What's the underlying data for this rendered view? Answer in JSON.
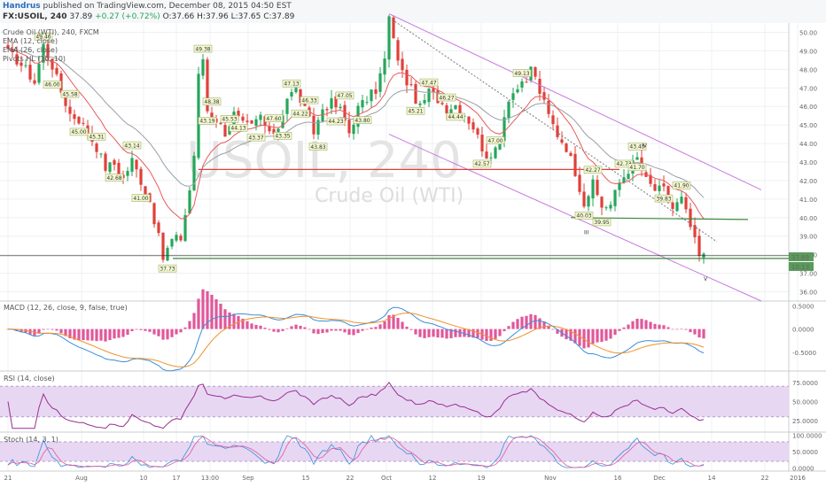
{
  "header": {
    "author": "Handrus",
    "published": "published on TradingView.com, December 08, 2015 04:50 EST",
    "symbol": "FX:USOIL, 240",
    "price": "37.89",
    "change": "+0.27 (+0.72%)",
    "ohlc": "O:37.66 H:37.96 L:37.65 C:37.89"
  },
  "legend": {
    "title": "Crude Oil (WTI), 240, FXCM",
    "ema12": "EMA (12, close)",
    "ema26": "EMA (26, close)",
    "pivots": "Pivots HL (10, 10)"
  },
  "watermark": {
    "ticker": "USOIL, 240",
    "name": "Crude Oil (WTI)"
  },
  "panels": {
    "macd": "MACD (12, 26, close, 9, false, true)",
    "rsi": "RSI (14, close)",
    "stoch": "Stoch (14, 3, 1)"
  },
  "colors": {
    "candle_up": "#26a65b",
    "candle_down": "#e0403a",
    "ema_fast": "#e85a5a",
    "ema_slow": "#9aa0a6",
    "channel": "#c879e0",
    "support": "#3c8a3c",
    "resistance": "#e0403a",
    "macd_line": "#3a8fd8",
    "signal_line": "#f0922a",
    "histogram": "#e0589a",
    "rsi_line": "#9b2f8f",
    "band_fill": "#e7d7f3"
  },
  "badges": {
    "last_price": "37.89",
    "countdown": "10:13"
  },
  "wave_labels": [
    "III",
    "IV",
    "V"
  ],
  "chart_data": [
    {
      "type": "candlestick",
      "title": "Crude Oil (WTI), 240, FXCM",
      "ylim": [
        35.5,
        50.5
      ],
      "y_ticks": [
        "50.00",
        "49.00",
        "48.00",
        "47.00",
        "46.00",
        "45.00",
        "44.00",
        "43.00",
        "42.00",
        "41.00",
        "40.00",
        "39.00",
        "38.00",
        "37.00",
        "36.00"
      ],
      "x_ticks": [
        "21",
        "Aug",
        "10",
        "17",
        "13:00",
        "Sep",
        "15",
        "22",
        "Oct",
        "12",
        "19",
        "Nov",
        "16",
        "Dec",
        "14",
        "22",
        "2016",
        "1"
      ],
      "close_path": [
        [
          0,
          48.9
        ],
        [
          2,
          48.5
        ],
        [
          4,
          48.0
        ],
        [
          6,
          47.3
        ],
        [
          8,
          49.3
        ],
        [
          10,
          48.2
        ],
        [
          12,
          46.8
        ],
        [
          14,
          45.6
        ],
        [
          16,
          45.3
        ],
        [
          18,
          44.6
        ],
        [
          20,
          43.8
        ],
        [
          22,
          42.7
        ],
        [
          24,
          42.9
        ],
        [
          26,
          42.1
        ],
        [
          28,
          43.1
        ],
        [
          30,
          42.0
        ],
        [
          32,
          40.9
        ],
        [
          34,
          38.9
        ],
        [
          35,
          37.8
        ],
        [
          37,
          38.8
        ],
        [
          39,
          38.9
        ],
        [
          41,
          41.5
        ],
        [
          42,
          43.4
        ],
        [
          43,
          47.6
        ],
        [
          44,
          48.6
        ],
        [
          45,
          45.8
        ],
        [
          47,
          45.3
        ],
        [
          49,
          44.6
        ],
        [
          51,
          45.6
        ],
        [
          53,
          45.0
        ],
        [
          55,
          44.9
        ],
        [
          57,
          45.5
        ],
        [
          59,
          44.4
        ],
        [
          61,
          44.9
        ],
        [
          63,
          46.5
        ],
        [
          65,
          46.9
        ],
        [
          67,
          45.8
        ],
        [
          69,
          44.6
        ],
        [
          71,
          45.9
        ],
        [
          73,
          46.2
        ],
        [
          75,
          45.8
        ],
        [
          77,
          44.6
        ],
        [
          79,
          45.9
        ],
        [
          81,
          46.4
        ],
        [
          83,
          46.9
        ],
        [
          85,
          48.5
        ],
        [
          86,
          50.8
        ],
        [
          87,
          49.5
        ],
        [
          89,
          47.8
        ],
        [
          91,
          46.9
        ],
        [
          93,
          45.9
        ],
        [
          95,
          46.8
        ],
        [
          97,
          46.4
        ],
        [
          99,
          45.9
        ],
        [
          101,
          46.1
        ],
        [
          103,
          45.6
        ],
        [
          105,
          44.9
        ],
        [
          107,
          43.8
        ],
        [
          109,
          43.0
        ],
        [
          111,
          44.5
        ],
        [
          113,
          46.5
        ],
        [
          115,
          47.0
        ],
        [
          117,
          47.2
        ],
        [
          118,
          48.2
        ],
        [
          120,
          46.8
        ],
        [
          122,
          45.5
        ],
        [
          124,
          44.5
        ],
        [
          126,
          43.8
        ],
        [
          128,
          42.5
        ],
        [
          130,
          40.8
        ],
        [
          132,
          41.8
        ],
        [
          134,
          40.6
        ],
        [
          136,
          40.7
        ],
        [
          138,
          41.9
        ],
        [
          140,
          42.6
        ],
        [
          142,
          43.2
        ],
        [
          144,
          42.0
        ],
        [
          146,
          41.5
        ],
        [
          148,
          41.5
        ],
        [
          150,
          40.5
        ],
        [
          152,
          41.0
        ],
        [
          154,
          39.5
        ],
        [
          156,
          37.9
        ],
        [
          157,
          37.9
        ]
      ],
      "series": [
        {
          "name": "EMA (12, close)",
          "role": "ema-fast"
        },
        {
          "name": "EMA (26, close)",
          "role": "ema-slow"
        }
      ],
      "pivot_highs": [
        {
          "x": 8,
          "label": "49.46"
        },
        {
          "x": 14,
          "label": "45.58"
        },
        {
          "x": 20,
          "label": "45.31"
        },
        {
          "x": 28,
          "label": "43.14"
        },
        {
          "x": 44,
          "label": "49.38"
        },
        {
          "x": 46,
          "label": "48.38"
        },
        {
          "x": 50,
          "label": "45.53"
        },
        {
          "x": 60,
          "label": "47.60"
        },
        {
          "x": 64,
          "label": "47.13"
        },
        {
          "x": 68,
          "label": "46.33"
        },
        {
          "x": 76,
          "label": "47.05"
        },
        {
          "x": 95,
          "label": "47.47"
        },
        {
          "x": 99,
          "label": "46.27"
        },
        {
          "x": 110,
          "label": "47.00"
        },
        {
          "x": 116,
          "label": "49.13"
        },
        {
          "x": 132,
          "label": "42.27"
        },
        {
          "x": 139,
          "label": "42.73"
        },
        {
          "x": 142,
          "label": "43.43"
        },
        {
          "x": 152,
          "label": "41.90"
        }
      ],
      "pivot_lows": [
        {
          "x": 10,
          "label": "46.00"
        },
        {
          "x": 16,
          "label": "45.00"
        },
        {
          "x": 24,
          "label": "42.68"
        },
        {
          "x": 30,
          "label": "41.00"
        },
        {
          "x": 36,
          "label": "37.73"
        },
        {
          "x": 45,
          "label": "43.19"
        },
        {
          "x": 52,
          "label": "44.13"
        },
        {
          "x": 56,
          "label": "43.37"
        },
        {
          "x": 62,
          "label": "43.35"
        },
        {
          "x": 66,
          "label": "44.22"
        },
        {
          "x": 70,
          "label": "43.83"
        },
        {
          "x": 74,
          "label": "44.23"
        },
        {
          "x": 80,
          "label": "43.80"
        },
        {
          "x": 92,
          "label": "45.21"
        },
        {
          "x": 101,
          "label": "44.44"
        },
        {
          "x": 107,
          "label": "42.57"
        },
        {
          "x": 130,
          "label": "40.03"
        },
        {
          "x": 134,
          "label": "39.95"
        },
        {
          "x": 142,
          "label": "41.70"
        },
        {
          "x": 148,
          "label": "39.83"
        }
      ],
      "annotations": {
        "support": 37.8,
        "resistance_level": 42.6,
        "pivot_line": 40.0,
        "channel_upper": [
          [
            86,
            51.0
          ],
          [
            170,
            41.5
          ]
        ],
        "channel_lower": [
          [
            86,
            44.5
          ],
          [
            170,
            35.5
          ]
        ],
        "dotted_trend": [
          [
            86,
            50.8
          ],
          [
            160,
            38.7
          ]
        ]
      }
    },
    {
      "type": "bar",
      "title": "MACD (12, 26, close, 9, false, true)",
      "ylim": [
        -0.9,
        0.6
      ],
      "y_ticks": [
        "0.5000",
        "0.0000",
        "-0.5000"
      ],
      "series": [
        {
          "name": "MACD",
          "role": "macd"
        },
        {
          "name": "Signal",
          "role": "signal"
        },
        {
          "name": "Histogram",
          "role": "histogram"
        }
      ]
    },
    {
      "type": "line",
      "title": "RSI (14, close)",
      "ylim": [
        10,
        90
      ],
      "y_ticks": [
        "75.0000",
        "50.0000",
        "25.0000"
      ],
      "band": [
        30,
        70
      ]
    },
    {
      "type": "line",
      "title": "Stoch (14, 3, 1)",
      "ylim": [
        -10,
        110
      ],
      "y_ticks": [
        "100.0000",
        "50.0000",
        "0.0000"
      ],
      "band": [
        20,
        80
      ]
    }
  ]
}
